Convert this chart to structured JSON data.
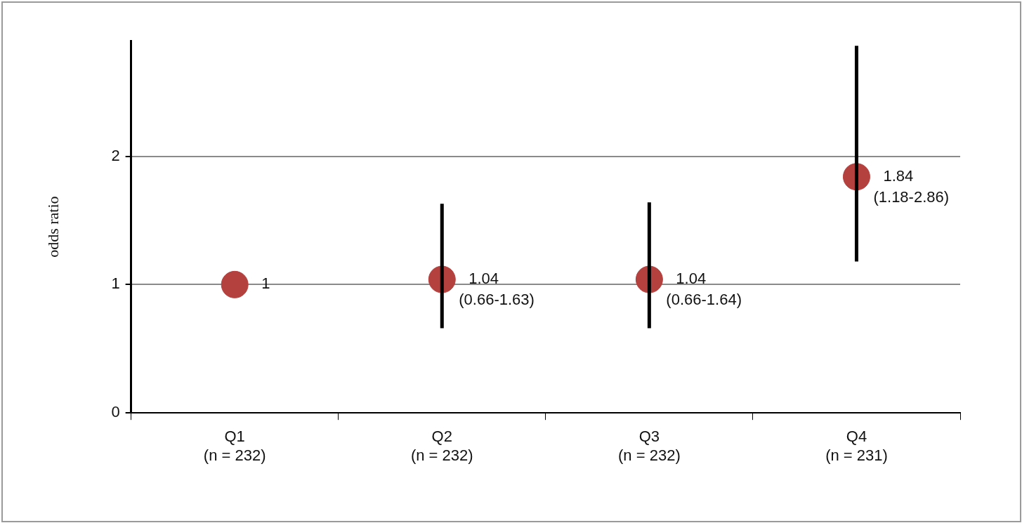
{
  "chart_data": {
    "type": "scatter",
    "ylabel": "odds ratio",
    "categories": [
      "Q1\n(n = 232)",
      "Q2\n(n = 232)",
      "Q3\n(n = 232)",
      "Q4\n(n = 231)"
    ],
    "values": [
      1,
      1.04,
      1.04,
      1.84
    ],
    "errors": [
      null,
      [
        0.66,
        1.63
      ],
      [
        0.66,
        1.64
      ],
      [
        1.18,
        2.86
      ]
    ],
    "value_labels": [
      "1",
      "1.04\n(0.66-1.63)",
      "1.04\n(0.66-1.64)",
      "1.84\n(1.18-2.86)"
    ],
    "color": "#b5413f",
    "marker": "circle",
    "ylim": [
      0,
      2.9
    ],
    "yticks": [
      0,
      1,
      2
    ],
    "grid": "y"
  }
}
